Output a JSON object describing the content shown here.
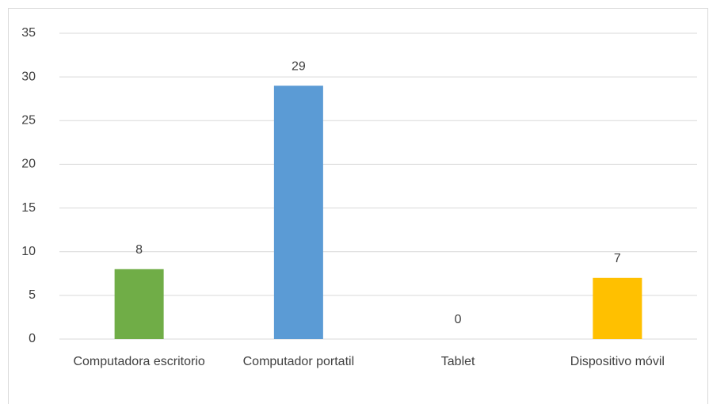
{
  "chart_data": {
    "type": "bar",
    "categories": [
      "Computadora escritorio",
      "Computador portatil",
      "Tablet",
      "Dispositivo móvil"
    ],
    "values": [
      8,
      29,
      0,
      7
    ],
    "colors": [
      "#70ad47",
      "#5b9bd5",
      "#a5a5a5",
      "#ffc000"
    ],
    "ylim": [
      0,
      35
    ],
    "yticks": [
      0,
      5,
      10,
      15,
      20,
      25,
      30,
      35
    ],
    "grid": true
  }
}
